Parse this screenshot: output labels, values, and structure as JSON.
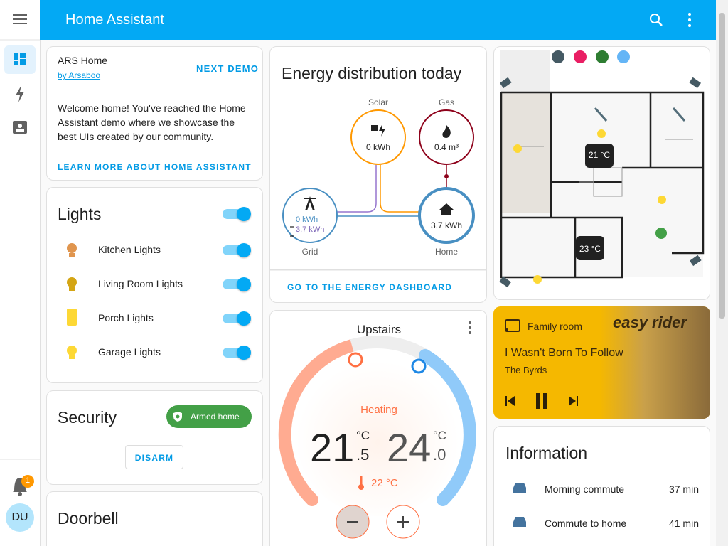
{
  "header": {
    "title": "Home Assistant"
  },
  "sidebar": {
    "badge": "1",
    "avatar": "DU"
  },
  "demo": {
    "title": "ARS Home",
    "author": "by Arsaboo",
    "action": "NEXT DEMO",
    "text": "Welcome home! You've reached the Home Assistant demo where we showcase the best UIs created by our community.",
    "link": "LEARN MORE ABOUT HOME ASSISTANT"
  },
  "lights": {
    "title": "Lights",
    "items": [
      "Kitchen Lights",
      "Living Room Lights",
      "Porch Lights",
      "Garage Lights"
    ]
  },
  "security": {
    "title": "Security",
    "state": "Armed home",
    "button": "DISARM"
  },
  "doorbell": {
    "title": "Doorbell"
  },
  "energy": {
    "title": "Energy distribution today",
    "solar": {
      "label": "Solar",
      "value": "0 kWh"
    },
    "gas": {
      "label": "Gas",
      "value": "0.4 m³"
    },
    "grid": {
      "label": "Grid",
      "in": "0 kWh",
      "out": "3.7 kWh"
    },
    "home": {
      "label": "Home",
      "value": "3.7 kWh"
    },
    "link": "GO TO THE ENERGY DASHBOARD"
  },
  "floorplan": {
    "temps": [
      "21 °C",
      "23 °C"
    ]
  },
  "thermostat": {
    "name": "Upstairs",
    "mode": "Heating",
    "low": "21",
    "low_decimal": ".5",
    "high": "24",
    "high_decimal": ".0",
    "unit": "°C",
    "current": "22 °C"
  },
  "media": {
    "source": "Family room",
    "title": "I Wasn't Born To Follow",
    "artist": "The Byrds",
    "art": "easy rider"
  },
  "information": {
    "title": "Information",
    "rows": [
      {
        "name": "Morning commute",
        "value": "37 min"
      },
      {
        "name": "Commute to home",
        "value": "41 min"
      }
    ]
  }
}
